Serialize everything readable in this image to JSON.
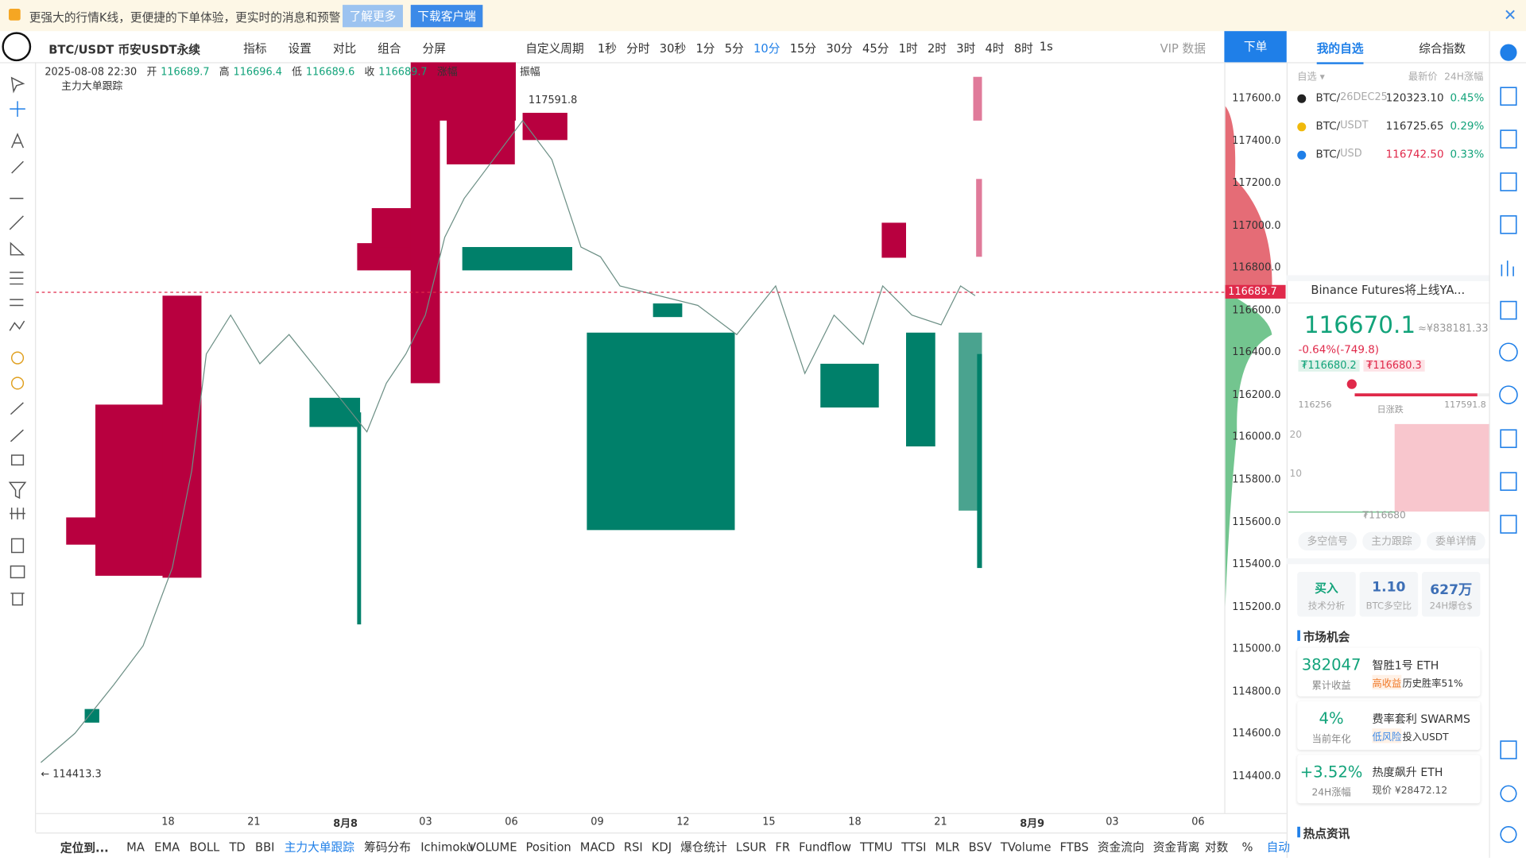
{
  "banner": {
    "text": "更强大的行情K线，更便捷的下单体验，更实时的消息和预警",
    "learn_more": "了解更多",
    "download": "下载客户端"
  },
  "toolbar": {
    "symbol": "BTC/USDT 币安USDT永续",
    "items": [
      "指标",
      "设置",
      "对比",
      "组合",
      "分屏"
    ],
    "custom_period": "自定义周期",
    "periods": [
      "1秒",
      "分时",
      "30秒",
      "1分",
      "5分",
      "10分",
      "15分",
      "30分",
      "45分",
      "1时",
      "2时",
      "3时",
      "4时",
      "8时"
    ],
    "active_period": "10分",
    "interval": "1s",
    "vip": "VIP 数据",
    "order": "下单"
  },
  "chart_info": {
    "date": "2025-08-08 22:30",
    "open_label": "开",
    "open": "116689.7",
    "high_label": "高",
    "high": "116696.4",
    "low_label": "低",
    "low": "116689.6",
    "close_label": "收",
    "close": "116689.7",
    "change_label": "涨幅",
    "amplitude_label": "振幅",
    "indicator": "主力大单跟踪"
  },
  "price_axis": {
    "ticks": [
      "117600.0",
      "117400.0",
      "117200.0",
      "117000.0",
      "116800.0",
      "116600.0",
      "116400.0",
      "116200.0",
      "116000.0",
      "115800.0",
      "115600.0",
      "115400.0",
      "115200.0",
      "115000.0",
      "114800.0",
      "114600.0",
      "114400.0"
    ],
    "current": "116689.7",
    "high_marker": "117591.8",
    "low_marker": "← 114413.3"
  },
  "time_axis": [
    "18",
    "21",
    "8月8",
    "03",
    "06",
    "09",
    "12",
    "15",
    "18",
    "21",
    "8月9",
    "03",
    "06"
  ],
  "bottom_bar": {
    "locate": "定位到...",
    "main_indicators": [
      "MA",
      "EMA",
      "BOLL",
      "TD",
      "BBI",
      "主力大单跟踪",
      "筹码分布",
      "Ichimoku"
    ],
    "active_indicator": "主力大单跟踪",
    "sub_indicators": [
      "VOLUME",
      "Position",
      "MACD",
      "RSI",
      "KDJ",
      "爆仓统计",
      "LSUR",
      "FR",
      "Fundflow",
      "TTMU",
      "TTSI",
      "MLR",
      "BSV",
      "TVolume",
      "FTBS",
      "资金流向",
      "资金背离"
    ],
    "right": [
      "对数",
      "%",
      "自动"
    ]
  },
  "right_panel": {
    "tabs": [
      "我的自选",
      "综合指数"
    ],
    "header": [
      "自选 ▾",
      "最新价",
      "24H涨幅"
    ],
    "watchlist": [
      [
        "BTC/",
        "26DEC25",
        "120323.10",
        "0.45%"
      ],
      [
        "BTC/",
        "USDT",
        "116725.65",
        "0.29%"
      ],
      [
        "BTC/",
        "USD",
        "116742.50",
        "0.33%"
      ]
    ],
    "news": "Binance Futures将上线YA...",
    "price": "116670.1",
    "price_cny": "≈¥838181.33",
    "change": "-0.64%(-749.8)",
    "bid": "₮116680.2",
    "ask": "₮116680.3",
    "range_low": "116256",
    "range_label": "日涨跌",
    "range_high": "117591.8",
    "depth_ticks": [
      "20",
      "10"
    ],
    "depth_price": "₮116680",
    "signal_tabs": [
      "多空信号",
      "主力跟踪",
      "委单详情"
    ],
    "stats": [
      [
        "买入",
        "技术分析"
      ],
      [
        "1.10",
        "BTC多空比"
      ],
      [
        "627万",
        "24H爆仓$"
      ]
    ],
    "market_title": "市场机会",
    "opportunities": [
      [
        "382047",
        "累计收益",
        "智胜1号 ETH",
        "高收益",
        "历史胜率51%"
      ],
      [
        "4%",
        "当前年化",
        "费率套利 SWARMS",
        "低风险",
        "投入USDT"
      ],
      [
        "+3.52%",
        "24H涨幅",
        "热度飙升 ETH",
        "现价 ¥28472.12",
        ""
      ]
    ],
    "hot_title": "热点资讯"
  }
}
